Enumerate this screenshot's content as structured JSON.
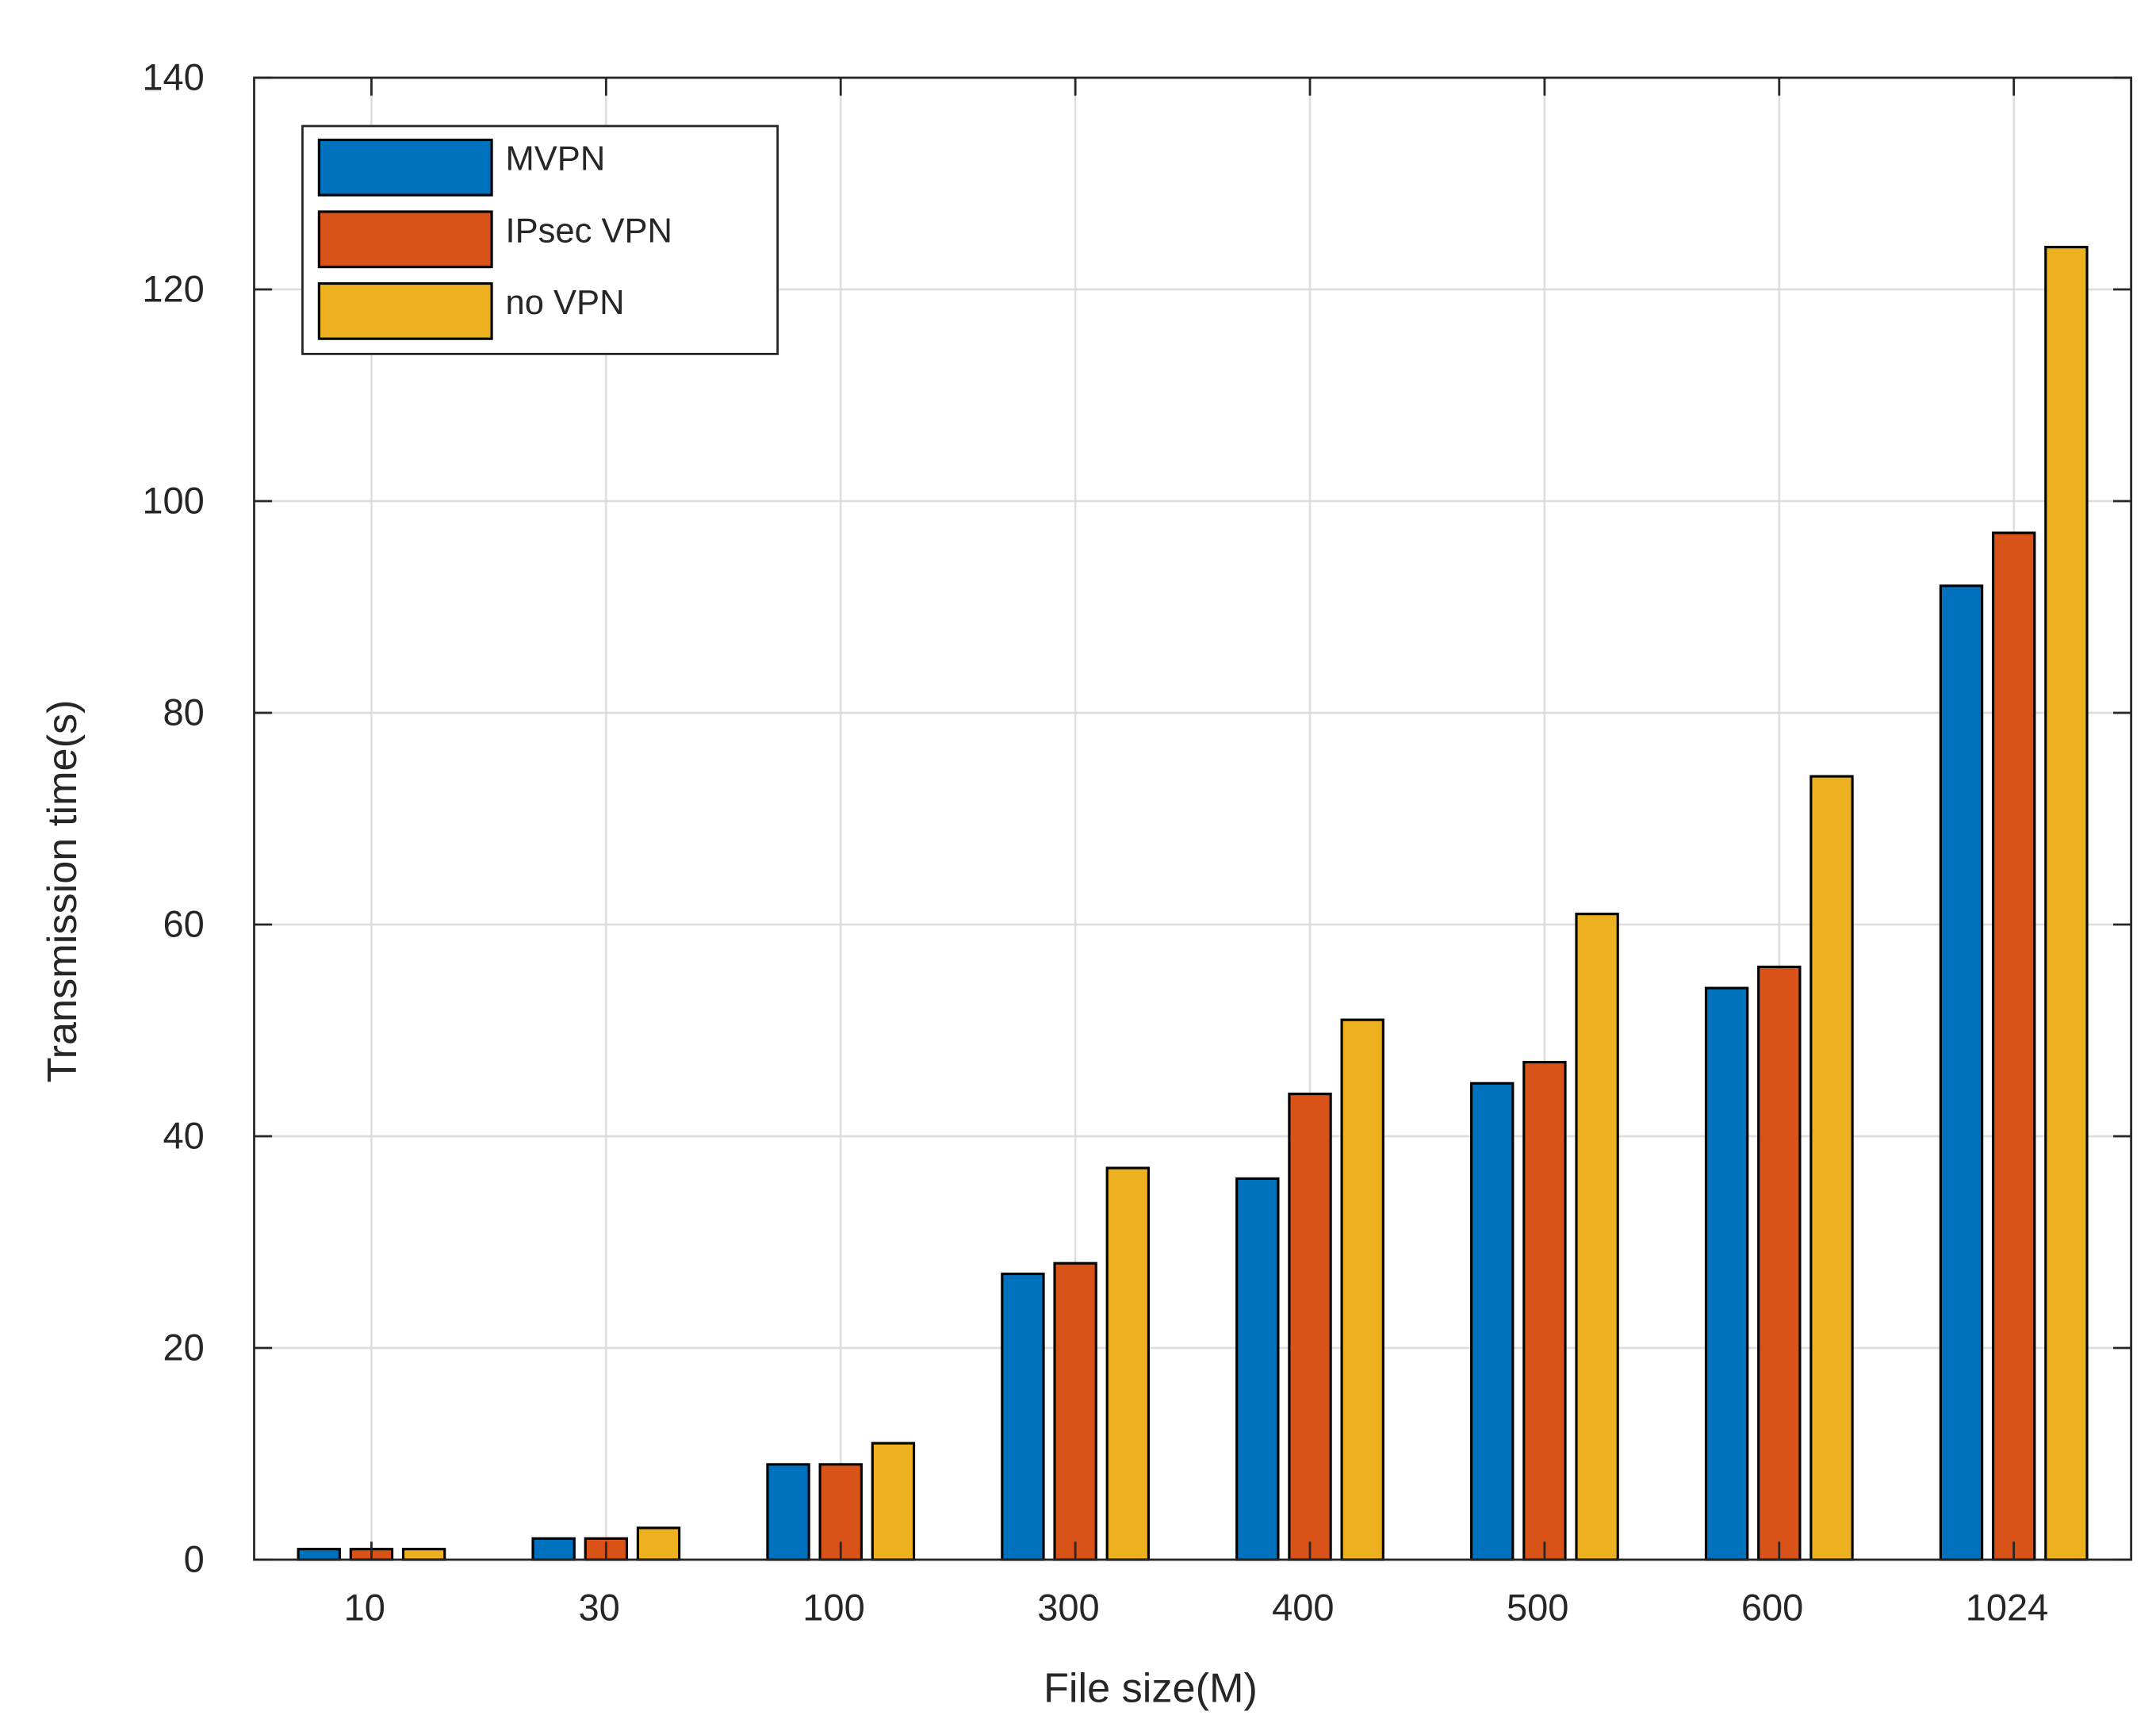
{
  "chart_data": {
    "type": "bar",
    "title": "",
    "xlabel": "File size(M)",
    "ylabel": "Transmission time(s)",
    "categories": [
      "10",
      "30",
      "100",
      "300",
      "400",
      "500",
      "600",
      "1024"
    ],
    "ylim": [
      0,
      140
    ],
    "yticks": [
      0,
      20,
      40,
      60,
      80,
      100,
      120,
      140
    ],
    "grid": true,
    "legend_position": "top-left",
    "series": [
      {
        "name": "MVPN",
        "color": "#0072BD",
        "values": [
          1,
          2,
          9,
          27,
          36,
          45,
          54,
          92
        ]
      },
      {
        "name": "IPsec VPN",
        "color": "#D95319",
        "values": [
          1,
          2,
          9,
          28,
          44,
          47,
          56,
          97
        ]
      },
      {
        "name": "no VPN",
        "color": "#EDB120",
        "values": [
          1,
          3,
          11,
          37,
          51,
          61,
          74,
          124
        ]
      }
    ]
  }
}
